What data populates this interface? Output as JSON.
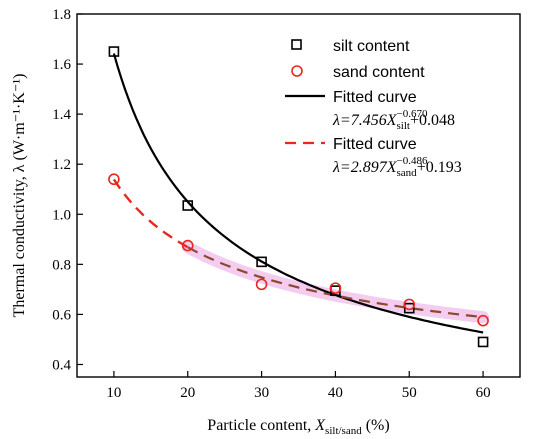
{
  "chart_data": {
    "type": "scatter",
    "xlabel": {
      "base": "Particle content, ",
      "var": "X",
      "sub": "silt/sand",
      "suffix": " (%)"
    },
    "ylabel": "Thermal conductivity, λ (W·m⁻¹·K⁻¹)",
    "xlim": [
      5,
      65
    ],
    "ylim": [
      0.35,
      1.8
    ],
    "x_ticks": [
      10,
      20,
      30,
      40,
      50,
      60
    ],
    "y_ticks": [
      0.4,
      0.6,
      0.8,
      1.0,
      1.2,
      1.4,
      1.6,
      1.8
    ],
    "y_tick_labels": [
      "0.4",
      "0.6",
      "0.8",
      "1.0",
      "1.2",
      "1.4",
      "1.6",
      "1.8"
    ],
    "legend_position": "top-right",
    "series": [
      {
        "name": "silt content",
        "marker": "square",
        "color": "#000000",
        "x": [
          10,
          20,
          30,
          40,
          50,
          60
        ],
        "y": [
          1.65,
          1.035,
          0.81,
          0.695,
          0.625,
          0.49
        ]
      },
      {
        "name": "sand content",
        "marker": "circle",
        "color": "#e8281e",
        "x": [
          10,
          20,
          30,
          40,
          50,
          60
        ],
        "y": [
          1.14,
          0.875,
          0.72,
          0.705,
          0.64,
          0.575
        ]
      }
    ],
    "fits": [
      {
        "name": "Fitted curve",
        "color": "#000000",
        "style": "solid",
        "a": 7.456,
        "b": -0.67,
        "c": 0.048,
        "var_sub": "silt",
        "eq": {
          "lhs": "λ=7.456",
          "var": "X",
          "sup": "−0.670",
          "sub": "silt",
          "tail": "+0.048"
        }
      },
      {
        "name": "Fitted curve",
        "color": "#e8281e",
        "style": "dashed",
        "a": 2.897,
        "b": -0.486,
        "c": 0.193,
        "var_sub": "sand",
        "eq": {
          "lhs": "λ=2.897",
          "var": "X",
          "sup": "−0.486",
          "sub": "sand",
          "tail": "+0.193"
        }
      }
    ],
    "colors": {
      "axis": "#000000",
      "band": "#f3c6ee",
      "sand_fit_overlay": "#8b4a2b"
    }
  }
}
